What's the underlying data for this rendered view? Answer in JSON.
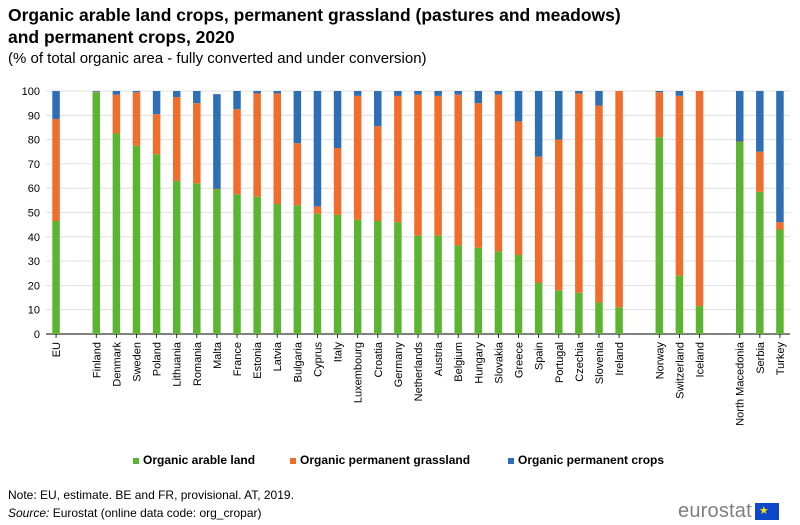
{
  "title": "Organic arable land crops, permanent grassland (pastures and meadows) and permanent crops, 2020",
  "subtitle": "(% of total organic area - fully converted and under conversion)",
  "note": "Note: EU, estimate. BE and FR, provisional. AT, 2019.",
  "source_label": "Source:",
  "source_text": " Eurostat (online data code: org_cropar)",
  "logo_text": "eurostat",
  "logo_stars": "★",
  "chart_data": {
    "type": "bar",
    "stacked": true,
    "ylim": [
      0,
      100
    ],
    "yticks": [
      0,
      10,
      20,
      30,
      40,
      50,
      60,
      70,
      80,
      90,
      100
    ],
    "grid": true,
    "legend_position": "bottom",
    "categories": [
      "EU",
      "",
      "Finland",
      "Denmark",
      "Sweden",
      "Poland",
      "Lithuania",
      "Romania",
      "Malta",
      "France",
      "Estonia",
      "Latvia",
      "Bulgaria",
      "Cyprus",
      "Italy",
      "Luxembourg",
      "Croatia",
      "Germany",
      "Netherlands",
      "Austria",
      "Belgium",
      "Hungary",
      "Slovakia",
      "Greece",
      "Spain",
      "Portugal",
      "Czechia",
      "Slovenia",
      "Ireland",
      "",
      "Norway",
      "Switzerland",
      "Iceland",
      "",
      "North Macedonia",
      "Serbia",
      "Turkey"
    ],
    "series": [
      {
        "name": "Organic arable land",
        "color": "#5cb531",
        "values": [
          46.5,
          null,
          99.5,
          82.5,
          77.5,
          74,
          63,
          62,
          59.5,
          57.5,
          56.5,
          53.5,
          53,
          49.5,
          49,
          47,
          46.5,
          46,
          40.5,
          40.5,
          36.5,
          35.5,
          34,
          32.5,
          21,
          18,
          17,
          13,
          11,
          null,
          81,
          24,
          11.5,
          null,
          79,
          58.5,
          43
        ]
      },
      {
        "name": "Organic permanent grassland",
        "color": "#f06d2b",
        "values": [
          42,
          null,
          0.2,
          16,
          22,
          16.5,
          34.5,
          33,
          0.2,
          35,
          42.5,
          45.5,
          25.5,
          3,
          27.5,
          51,
          39,
          52,
          58,
          57.5,
          62,
          59.5,
          64.5,
          55,
          52,
          62,
          82,
          81,
          89,
          null,
          18.5,
          74,
          88.5,
          null,
          0.2,
          16.5,
          3
        ]
      },
      {
        "name": "Organic permanent crops",
        "color": "#2e6eb5",
        "values": [
          11.5,
          null,
          0.3,
          1.5,
          0.5,
          9.5,
          2.5,
          5,
          39,
          7.5,
          1,
          1,
          21.5,
          47.5,
          23.5,
          2,
          14.5,
          2,
          1.5,
          2,
          1.5,
          5,
          1.5,
          12.5,
          27,
          20,
          1,
          6,
          0,
          null,
          0.5,
          2,
          0,
          null,
          20.8,
          25,
          54
        ]
      }
    ]
  }
}
